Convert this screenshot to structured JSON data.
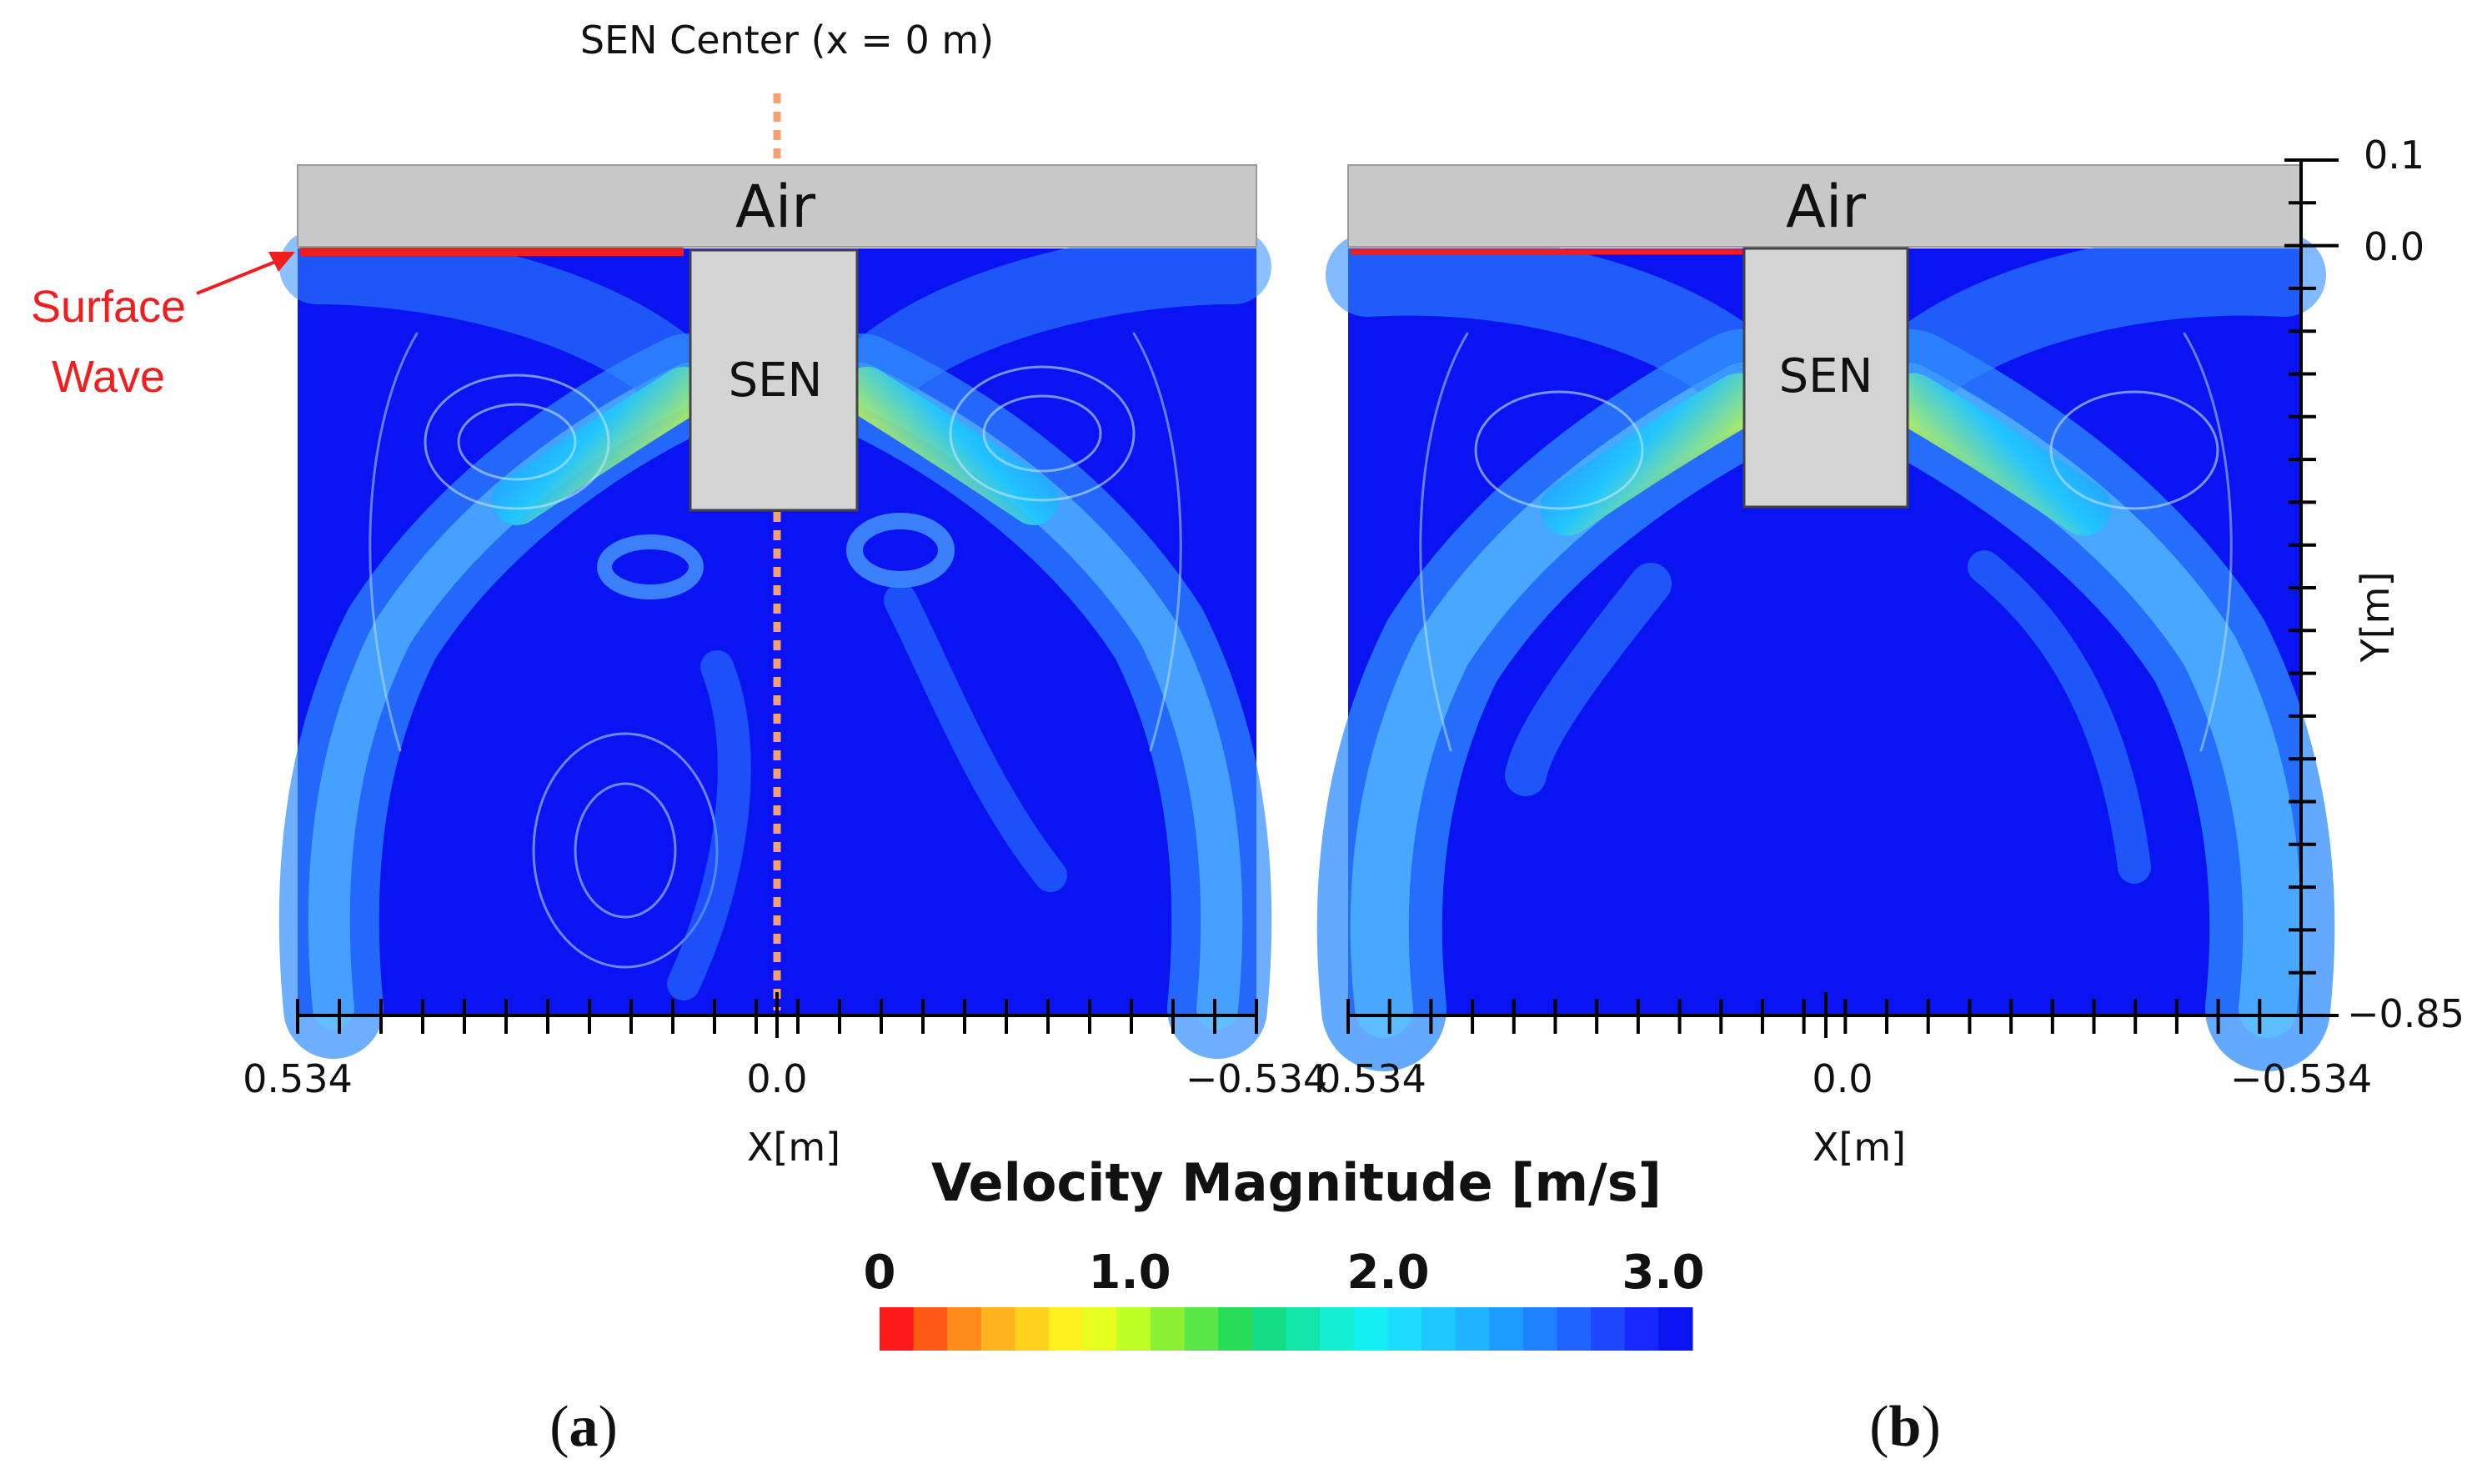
{
  "annotations": {
    "sen_center": "SEN Center (x = 0 m)",
    "surface_wave_line1": "Surface",
    "surface_wave_line2": "Wave"
  },
  "panels": [
    {
      "id": "a",
      "caption_open": "(",
      "caption_letter": "a",
      "caption_close": ")",
      "air_label": "Air",
      "sen_label": "SEN",
      "x_tick_labels": [
        "0.534",
        "0.0",
        "−0.534"
      ],
      "x_axis_label": "X[m]"
    },
    {
      "id": "b",
      "caption_open": "(",
      "caption_letter": "b",
      "caption_close": ")",
      "air_label": "Air",
      "sen_label": "SEN",
      "x_tick_labels": [
        "0.534",
        "0.0",
        "−0.534"
      ],
      "x_axis_label": "X[m]"
    }
  ],
  "y_axis": {
    "label": "Y[m]",
    "tick_labels": [
      "0.1",
      "0.0",
      "−0.85"
    ]
  },
  "colorbar": {
    "title": "Velocity Magnitude [m/s]",
    "tick_labels": [
      "0",
      "1.0",
      "2.0",
      "3.0"
    ],
    "range": [
      0,
      3.0
    ],
    "colors": [
      "#ff1a1a",
      "#ff5a14",
      "#ff8c1a",
      "#ffb41e",
      "#ffd21e",
      "#fff01e",
      "#e6ff1e",
      "#beff28",
      "#8cf032",
      "#5ae646",
      "#28dc5a",
      "#14dc82",
      "#14e6aa",
      "#14f0d2",
      "#14f0f0",
      "#1edcff",
      "#1ec8ff",
      "#1eb4ff",
      "#1e9bff",
      "#1e82ff",
      "#1e64ff",
      "#1e46ff",
      "#1428ff",
      "#0a14f0"
    ]
  },
  "colors": {
    "fluid": "#0a14f0",
    "air": "#c8c8c8",
    "sen": "#d4d4d4",
    "surface_wave": "#f01e1e",
    "center_line": "#f4a070"
  }
}
